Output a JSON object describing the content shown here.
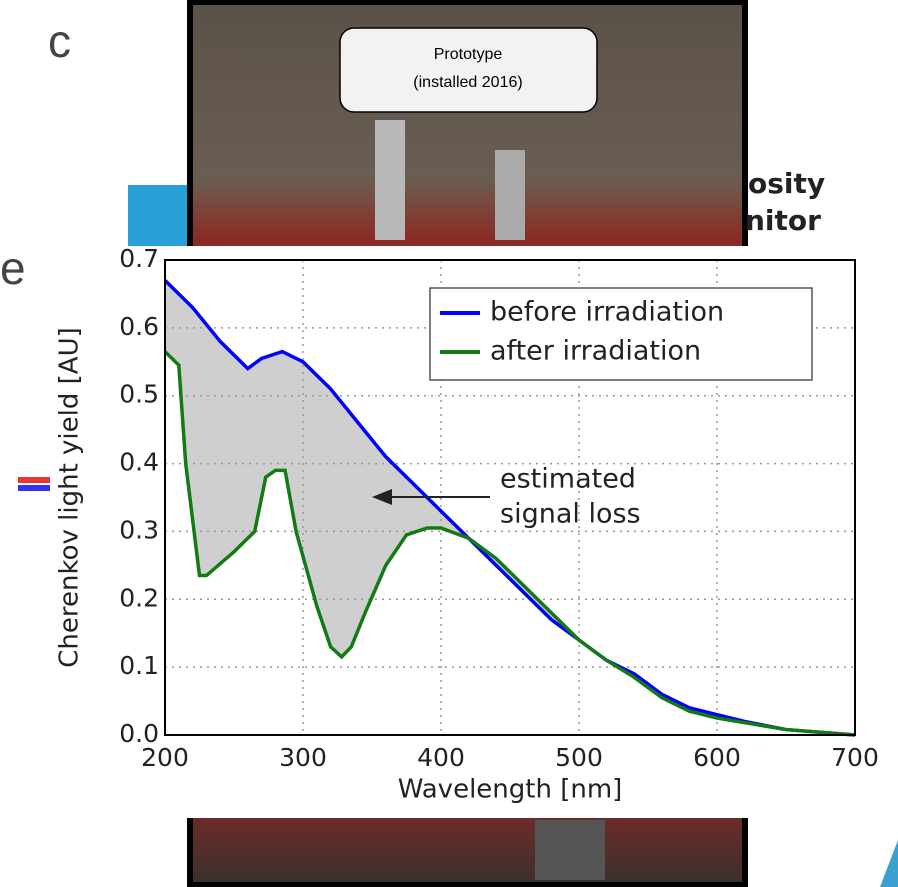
{
  "slide": {
    "fragments": [
      "c",
      "e",
      "osity",
      "nitor"
    ],
    "callout": [
      "Prototype",
      "(installed 2016)"
    ]
  },
  "chart_data": {
    "type": "line",
    "xlabel": "Wavelength [nm]",
    "ylabel": "Cherenkov light yield [AU]",
    "xlim": [
      200,
      700
    ],
    "xticks": [
      200,
      300,
      400,
      500,
      600,
      700
    ],
    "ylim": [
      0,
      0.7
    ],
    "yticks": [
      {
        "value": 0,
        "label": "0.0"
      },
      0.1,
      0.2,
      0.3,
      0.4,
      0.5,
      0.6,
      0.7
    ],
    "grid": true,
    "legend": "upper right",
    "fill_between": "#cfcfcf",
    "annotation": [
      "estimated",
      "signal loss"
    ],
    "series": [
      {
        "name": "before irradiation",
        "color": "#0000ff",
        "x": [
          200,
          220,
          240,
          260,
          270,
          285,
          300,
          320,
          340,
          360,
          380,
          400,
          420,
          440,
          460,
          480,
          500,
          520,
          540,
          560,
          580,
          600,
          620,
          650,
          700
        ],
        "values": [
          0.67,
          0.63,
          0.58,
          0.54,
          0.555,
          0.565,
          0.55,
          0.51,
          0.46,
          0.41,
          0.37,
          0.33,
          0.29,
          0.25,
          0.21,
          0.17,
          0.14,
          0.11,
          0.09,
          0.06,
          0.04,
          0.03,
          0.02,
          0.008,
          0
        ]
      },
      {
        "name": "after irradiation",
        "color": "#137b13",
        "x": [
          200,
          210,
          215,
          225,
          230,
          250,
          265,
          273,
          280,
          287,
          295,
          310,
          320,
          328,
          335,
          345,
          360,
          375,
          390,
          400,
          420,
          440,
          460,
          480,
          500,
          520,
          540,
          560,
          580,
          600,
          650,
          700
        ],
        "values": [
          0.565,
          0.545,
          0.4,
          0.235,
          0.235,
          0.27,
          0.3,
          0.38,
          0.39,
          0.39,
          0.3,
          0.19,
          0.13,
          0.115,
          0.13,
          0.18,
          0.25,
          0.295,
          0.305,
          0.305,
          0.29,
          0.26,
          0.22,
          0.18,
          0.14,
          0.11,
          0.085,
          0.055,
          0.035,
          0.025,
          0.008,
          0
        ]
      }
    ]
  }
}
